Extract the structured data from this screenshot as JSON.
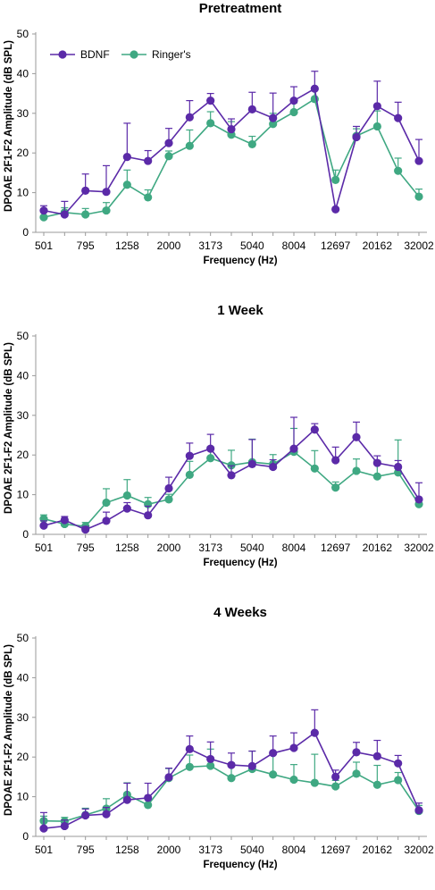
{
  "colors": {
    "bdnf": "#5b2aa8",
    "ringers": "#3fa882",
    "axis": "#9a9a9a"
  },
  "chart_data": [
    {
      "type": "line",
      "title": "Pretreatment",
      "xlabel": "Frequency (Hz)",
      "ylabel": "DPOAE 2F1-F2 Amplitude (dB SPL)",
      "ylim": [
        0,
        50
      ],
      "yticks": [
        "0",
        "10",
        "20",
        "30",
        "40",
        "50"
      ],
      "xtick_labels": [
        "501",
        "795",
        "1258",
        "2000",
        "3173",
        "5040",
        "8004",
        "12697",
        "20162",
        "32002"
      ],
      "legend": {
        "position": "top-left",
        "entries": [
          "BDNF",
          "Ringer's"
        ]
      },
      "series": [
        {
          "name": "BDNF",
          "color": "#5b2aa8",
          "values": [
            5.5,
            4.5,
            10.5,
            10.2,
            19,
            18,
            22.5,
            29,
            33.2,
            26,
            31,
            28.8,
            33.2,
            36.2,
            5.8,
            24,
            31.8,
            28.8,
            18
          ],
          "errors": [
            1.2,
            3.3,
            4.2,
            6.6,
            8.5,
            2.6,
            3.7,
            4.2,
            1.8,
            2.6,
            4.3,
            6.3,
            3.5,
            4.4,
            0,
            2.7,
            6.3,
            4.0,
            5.4
          ]
        },
        {
          "name": "Ringer's",
          "color": "#3fa882",
          "values": [
            3.8,
            5,
            4.5,
            5.5,
            12,
            8.8,
            19.2,
            21.8,
            27.5,
            24.6,
            22.2,
            27.3,
            30.3,
            33.6,
            13.2,
            24.3,
            26.7,
            15.5,
            9
          ],
          "errors": [
            1.5,
            1.2,
            1.5,
            2.0,
            3.7,
            1.9,
            1.3,
            4.0,
            2.9,
            3.3,
            2.0,
            2.7,
            2.3,
            2.5,
            2.5,
            1.8,
            3.9,
            3.2,
            1.9
          ]
        }
      ]
    },
    {
      "type": "line",
      "title": "1 Week",
      "xlabel": "Frequency (Hz)",
      "ylabel": "DPOAE 2F1-F2 Amplitude (dB SPL)",
      "ylim": [
        0,
        50
      ],
      "yticks": [
        "0",
        "10",
        "20",
        "30",
        "40",
        "50"
      ],
      "xtick_labels": [
        "501",
        "795",
        "1258",
        "2000",
        "3173",
        "5040",
        "8004",
        "12697",
        "20162",
        "32002"
      ],
      "series": [
        {
          "name": "BDNF",
          "color": "#5b2aa8",
          "values": [
            2.2,
            3.6,
            1.2,
            3.4,
            6.5,
            4.8,
            11.6,
            19.8,
            21.6,
            14.9,
            17.7,
            17,
            21.6,
            26.4,
            18.7,
            24.5,
            18,
            17,
            8.8
          ],
          "errors": [
            1.2,
            0.9,
            0.8,
            2.2,
            1.5,
            2.3,
            2.8,
            3.2,
            3.6,
            2.4,
            6.2,
            1.8,
            7.9,
            1.5,
            3.3,
            3.8,
            1.8,
            1.6,
            4.2
          ]
        },
        {
          "name": "Ringer's",
          "color": "#3fa882",
          "values": [
            3.9,
            2.6,
            2,
            8,
            9.8,
            7.6,
            8.8,
            15,
            19.2,
            17.4,
            18.2,
            17.7,
            20.8,
            16.6,
            11.8,
            16,
            14.6,
            15.6,
            7.6
          ],
          "errors": [
            1.0,
            0.8,
            1.0,
            3.5,
            4.0,
            1.7,
            1.3,
            3.4,
            2.9,
            3.8,
            5.8,
            2.4,
            5.9,
            4.5,
            1.4,
            3.0,
            4.0,
            8.2,
            1.0
          ]
        }
      ]
    },
    {
      "type": "line",
      "title": "4 Weeks",
      "xlabel": "Frequency (Hz)",
      "ylabel": "DPOAE 2F1-F2 Amplitude (dB SPL)",
      "ylim": [
        0,
        50
      ],
      "yticks": [
        "0",
        "10",
        "20",
        "30",
        "40",
        "50"
      ],
      "xtick_labels": [
        "501",
        "795",
        "1258",
        "2000",
        "3173",
        "5040",
        "8004",
        "12697",
        "20162",
        "32002"
      ],
      "series": [
        {
          "name": "BDNF",
          "color": "#5b2aa8",
          "values": [
            2,
            2.6,
            5.3,
            5.6,
            9.2,
            9.7,
            14.9,
            22,
            19.5,
            18,
            17.7,
            21,
            22.3,
            26.1,
            15,
            21.2,
            20.2,
            18.4,
            6.6
          ],
          "errors": [
            4.0,
            1.5,
            1.6,
            1.7,
            4.2,
            3.7,
            2.3,
            3.3,
            4.3,
            3.0,
            3.8,
            4.3,
            3.8,
            5.8,
            1.7,
            2.5,
            4.0,
            2.0,
            1.8
          ]
        },
        {
          "name": "Ringer's",
          "color": "#3fa882",
          "values": [
            3.9,
            3.8,
            5.4,
            7,
            10.5,
            7.9,
            14.7,
            17.5,
            17.8,
            14.7,
            17,
            15.6,
            14.3,
            13.5,
            12.6,
            15.8,
            13,
            14.2,
            6.4
          ],
          "errors": [
            1.2,
            1.0,
            1.7,
            2.5,
            3.0,
            1.6,
            2.4,
            3.0,
            4.2,
            3.8,
            4.5,
            5.1,
            3.8,
            7.2,
            1.5,
            2.9,
            4.9,
            1.9,
            1.4
          ]
        }
      ]
    }
  ]
}
